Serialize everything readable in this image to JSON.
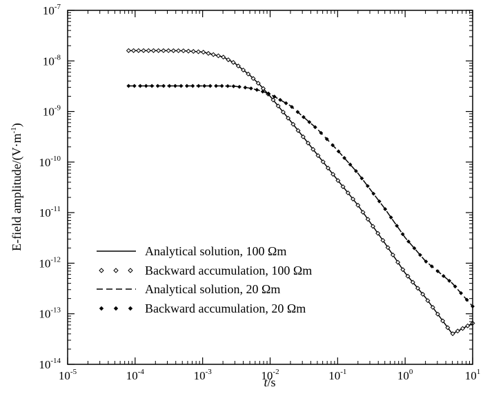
{
  "chart_data": {
    "type": "line",
    "title": "",
    "xlabel": {
      "italic": "t",
      "rest": "/s"
    },
    "ylabel": {
      "main": "E-field amplitude/(V·m",
      "exp": "-1",
      "close": ")"
    },
    "xscale": "log",
    "yscale": "log",
    "xlim": [
      1e-05,
      10
    ],
    "ylim": [
      1e-14,
      1e-07
    ],
    "grid": false,
    "legend_position": "lower-left",
    "x_ticks": [
      {
        "base": "10",
        "exp": "-5"
      },
      {
        "base": "10",
        "exp": "-4"
      },
      {
        "base": "10",
        "exp": "-3"
      },
      {
        "base": "10",
        "exp": "-2"
      },
      {
        "base": "10",
        "exp": "-1"
      },
      {
        "base": "10",
        "exp": "0"
      },
      {
        "base": "10",
        "exp": "1"
      }
    ],
    "y_ticks": [
      {
        "base": "10",
        "exp": "-14"
      },
      {
        "base": "10",
        "exp": "-13"
      },
      {
        "base": "10",
        "exp": "-12"
      },
      {
        "base": "10",
        "exp": "-11"
      },
      {
        "base": "10",
        "exp": "-10"
      },
      {
        "base": "10",
        "exp": "-9"
      },
      {
        "base": "10",
        "exp": "-8"
      },
      {
        "base": "10",
        "exp": "-7"
      }
    ],
    "series": [
      {
        "name": "Analytical solution, 100 Ωm",
        "style": "solid",
        "color": "#000000",
        "x": [
          8e-05,
          0.0001,
          0.0002,
          0.0005,
          0.001,
          0.002,
          0.003,
          0.005,
          0.007,
          0.01,
          0.02,
          0.05,
          0.1,
          0.2,
          0.5,
          1,
          2,
          5,
          10
        ],
        "y": [
          1.6e-08,
          1.6e-08,
          1.6e-08,
          1.59e-08,
          1.5e-08,
          1.2e-08,
          9e-09,
          5.2e-09,
          3.4e-09,
          2e-09,
          6.5e-10,
          1.4e-10,
          4.4e-11,
          1.4e-11,
          2.5e-12,
          6.4e-13,
          2.1e-13,
          4e-14,
          6.5e-14
        ]
      },
      {
        "name": "Backward accumulation, 100 Ωm",
        "style": "diamond-markers",
        "color": "#000000",
        "x": [
          8e-05,
          0.0001,
          0.0002,
          0.0005,
          0.001,
          0.002,
          0.003,
          0.005,
          0.007,
          0.01,
          0.02,
          0.05,
          0.1,
          0.2,
          0.5,
          1,
          2,
          5,
          10
        ],
        "y": [
          1.6e-08,
          1.6e-08,
          1.6e-08,
          1.59e-08,
          1.5e-08,
          1.2e-08,
          9e-09,
          5.2e-09,
          3.4e-09,
          2e-09,
          6.5e-10,
          1.4e-10,
          4.4e-11,
          1.4e-11,
          2.5e-12,
          6.4e-13,
          2.1e-13,
          4e-14,
          6.5e-14
        ]
      },
      {
        "name": "Analytical solution, 20 Ωm",
        "style": "dashed",
        "color": "#000000",
        "x": [
          8e-05,
          0.0001,
          0.0005,
          0.001,
          0.002,
          0.003,
          0.005,
          0.007,
          0.01,
          0.02,
          0.05,
          0.1,
          0.2,
          0.5,
          1,
          2,
          5,
          10
        ],
        "y": [
          3.2e-09,
          3.2e-09,
          3.2e-09,
          3.2e-09,
          3.2e-09,
          3.15e-09,
          2.9e-09,
          2.6e-09,
          2.2e-09,
          1.3e-09,
          4.5e-10,
          1.7e-10,
          6e-11,
          1.2e-11,
          3.2e-12,
          1.1e-12,
          4e-13,
          1.4e-13
        ]
      },
      {
        "name": "Backward accumulation, 20 Ωm",
        "style": "filled-diamond-markers",
        "color": "#000000",
        "x": [
          8e-05,
          0.0001,
          0.0005,
          0.001,
          0.002,
          0.003,
          0.005,
          0.007,
          0.01,
          0.02,
          0.05,
          0.1,
          0.2,
          0.5,
          1,
          2,
          5,
          10
        ],
        "y": [
          3.2e-09,
          3.2e-09,
          3.2e-09,
          3.2e-09,
          3.2e-09,
          3.15e-09,
          2.9e-09,
          2.6e-09,
          2.2e-09,
          1.3e-09,
          4.5e-10,
          1.7e-10,
          6e-11,
          1.2e-11,
          3.2e-12,
          1.1e-12,
          4e-13,
          1.4e-13
        ]
      }
    ]
  }
}
